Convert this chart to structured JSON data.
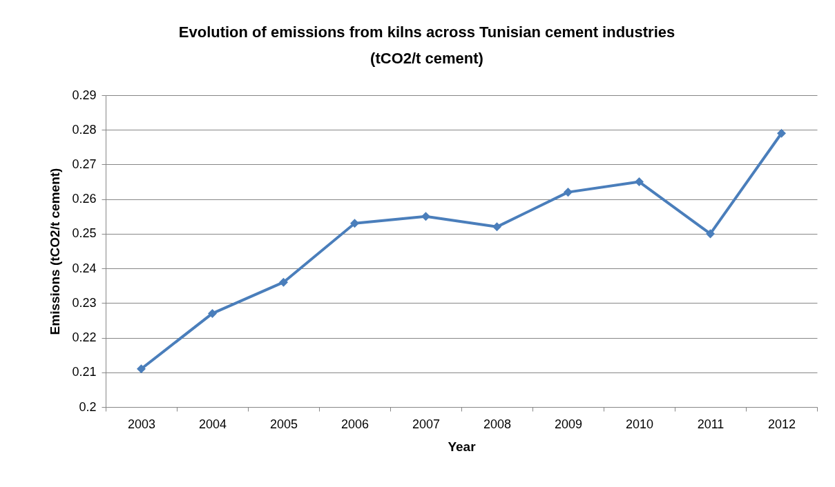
{
  "chart_data": {
    "type": "line",
    "title": "Evolution of emissions from kilns across Tunisian cement industries\n(tCO2/t cement)",
    "xlabel": "Year",
    "ylabel": "Emissions (tCO2/t cement)",
    "categories": [
      "2003",
      "2004",
      "2005",
      "2006",
      "2007",
      "2008",
      "2009",
      "2010",
      "2011",
      "2012"
    ],
    "series": [
      {
        "color": "#4a7ebb",
        "values": [
          0.211,
          0.227,
          0.236,
          0.253,
          0.255,
          0.252,
          0.262,
          0.265,
          0.25,
          0.279
        ]
      }
    ],
    "ylim": [
      0.2,
      0.29
    ],
    "yticks": [
      0.2,
      0.21,
      0.22,
      0.23,
      0.24,
      0.25,
      0.26,
      0.27,
      0.28,
      0.29
    ],
    "grid": "y",
    "legend": false,
    "marker": "diamond",
    "line_style": "solid"
  }
}
